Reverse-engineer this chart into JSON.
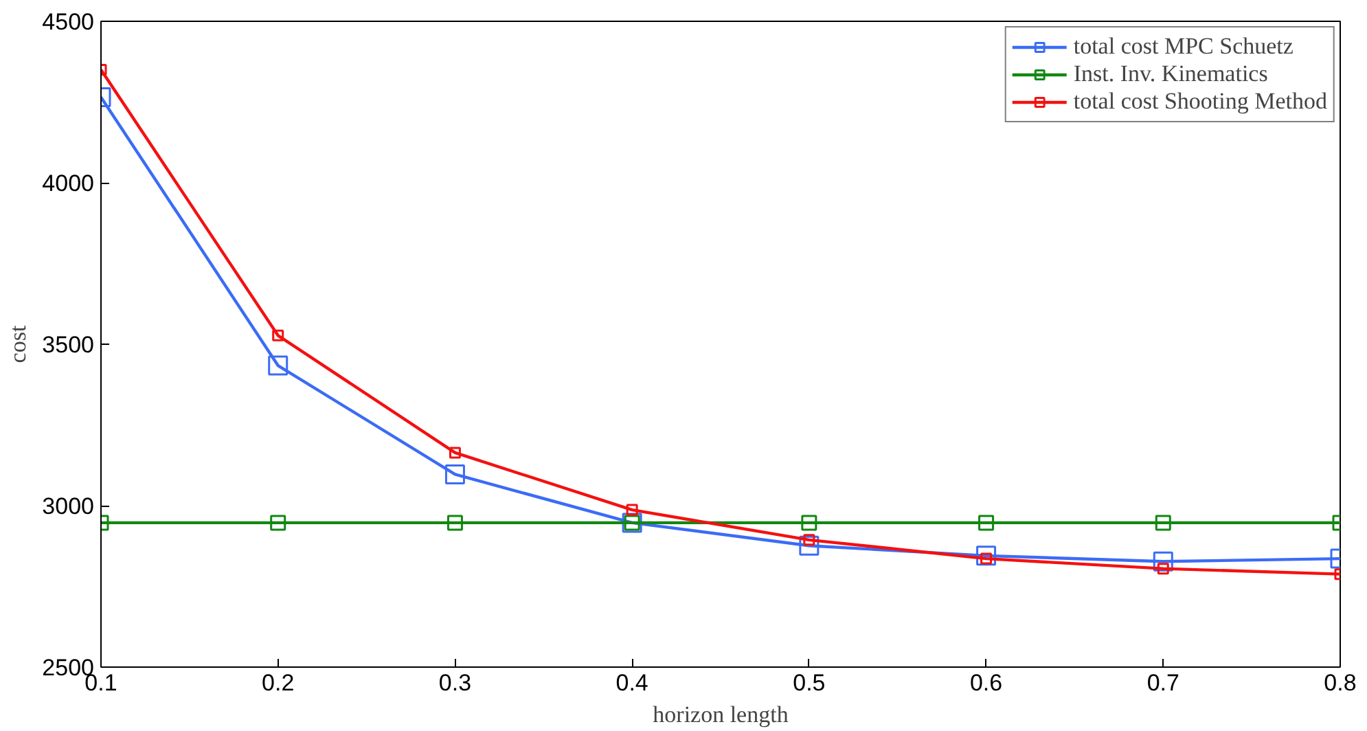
{
  "chart_data": {
    "type": "line",
    "xlabel": "horizon length",
    "ylabel": "cost",
    "x": [
      0.1,
      0.2,
      0.3,
      0.4,
      0.5,
      0.6,
      0.7,
      0.8
    ],
    "series": [
      {
        "name": "total cost MPC Schuetz",
        "color": "#3b6cf5",
        "values": [
          4265,
          3434,
          3097,
          2947,
          2876,
          2845,
          2827,
          2836
        ]
      },
      {
        "name": "Inst. Inv. Kinematics",
        "color": "#118811",
        "values": [
          2947,
          2947,
          2947,
          2947,
          2947,
          2947,
          2947,
          2947
        ]
      },
      {
        "name": "total cost Shooting Method",
        "color": "#f41010",
        "values": [
          4350,
          3527,
          3164,
          2987,
          2894,
          2836,
          2805,
          2788
        ]
      }
    ],
    "xlim": [
      0.1,
      0.8
    ],
    "xticks": [
      0.1,
      0.2,
      0.3,
      0.4,
      0.5,
      0.6,
      0.7,
      0.8
    ],
    "ylim": [
      2500,
      4500
    ],
    "yticks": [
      2500,
      3000,
      3500,
      4000,
      4500
    ],
    "grid": false,
    "legend": "top right",
    "marker": "square",
    "line_style": "solid"
  }
}
